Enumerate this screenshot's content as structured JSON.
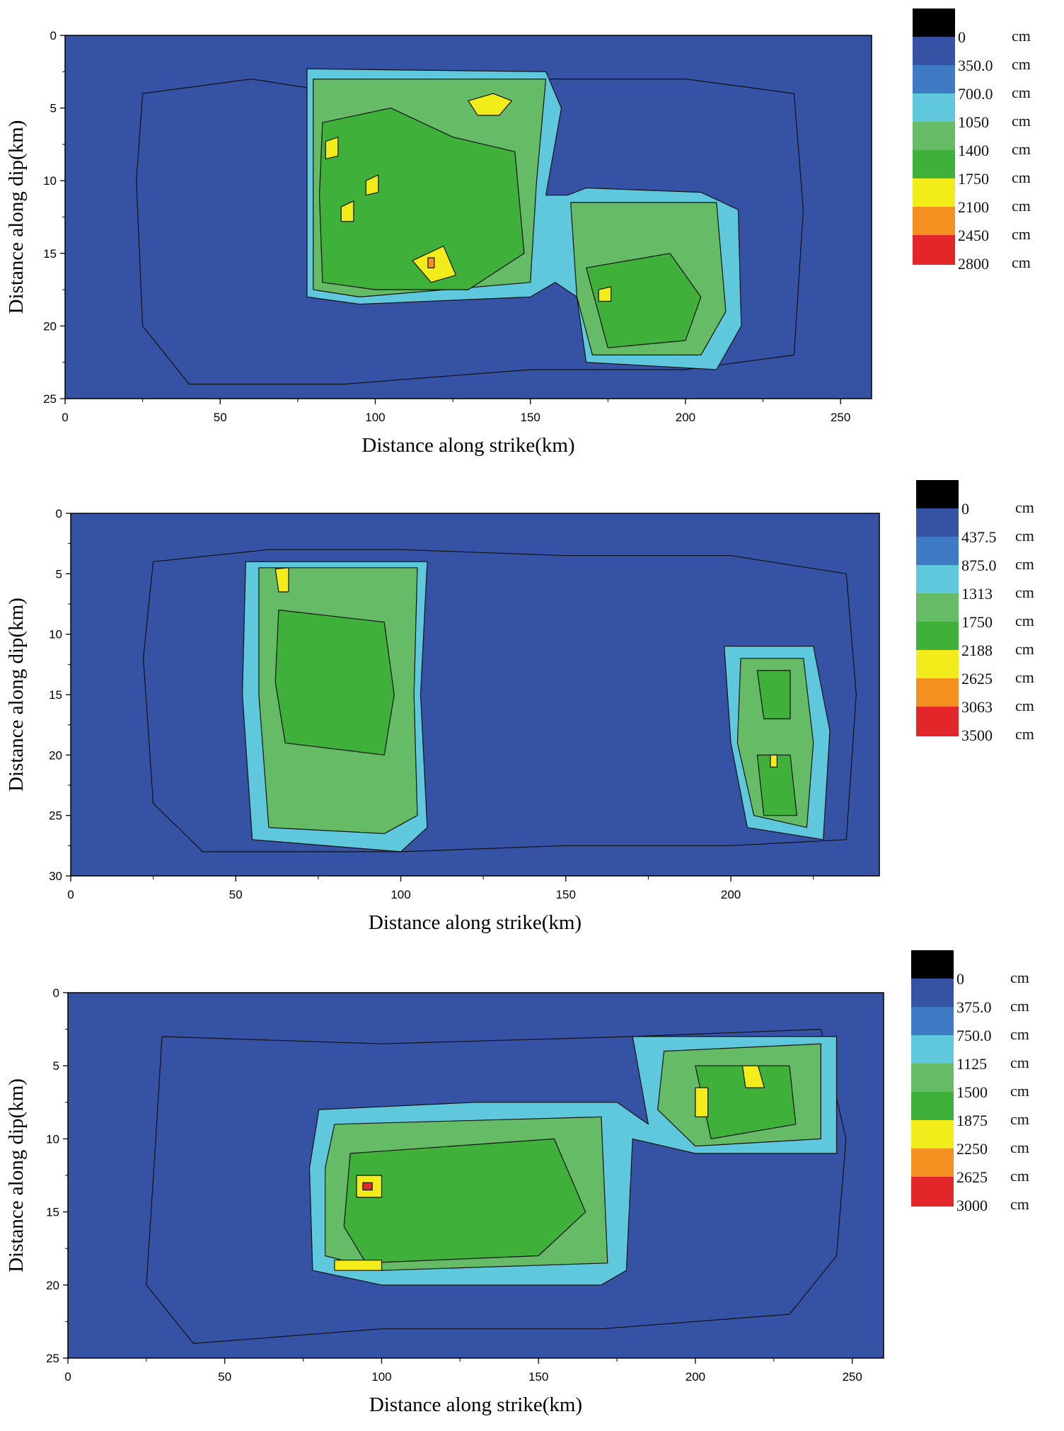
{
  "chart_data": [
    {
      "type": "heatmap",
      "xlabel": "Distance along strike(km)",
      "ylabel": "Distance along dip(km)",
      "xlim": [
        0,
        260
      ],
      "ylim": [
        25,
        0
      ],
      "x_ticks": [
        "0",
        "50",
        "100",
        "150",
        "200",
        "250"
      ],
      "y_ticks": [
        "0",
        "5",
        "10",
        "15",
        "20",
        "25"
      ],
      "legend": {
        "levels": [
          "0",
          "350.0",
          "700.0",
          "1050",
          "1400",
          "1750",
          "2100",
          "2450",
          "2800"
        ],
        "unit": "cm",
        "colors": [
          "#000000",
          "#3652a4",
          "#3f7bc4",
          "#5fc8dc",
          "#66bb66",
          "#3fb03a",
          "#f2ec1a",
          "#f39020",
          "#e3262a"
        ]
      },
      "patches": [
        {
          "level": 1,
          "points": [
            [
              25,
              4
            ],
            [
              60,
              3
            ],
            [
              90,
              4
            ],
            [
              150,
              3
            ],
            [
              200,
              3
            ],
            [
              235,
              4
            ],
            [
              238,
              12
            ],
            [
              235,
              22
            ],
            [
              200,
              23
            ],
            [
              150,
              23
            ],
            [
              90,
              24
            ],
            [
              40,
              24
            ],
            [
              25,
              20
            ],
            [
              23,
              10
            ]
          ]
        },
        {
          "level": 3,
          "points": [
            [
              78,
              2.3
            ],
            [
              155,
              2.5
            ],
            [
              160,
              5
            ],
            [
              155,
              11
            ],
            [
              162,
              11
            ],
            [
              168,
              10.5
            ],
            [
              205,
              10.8
            ],
            [
              217,
              12
            ],
            [
              218,
              20
            ],
            [
              210,
              23
            ],
            [
              168,
              22.5
            ],
            [
              165,
              18
            ],
            [
              158,
              17
            ],
            [
              150,
              18
            ],
            [
              95,
              18.5
            ],
            [
              78,
              18
            ]
          ]
        },
        {
          "level": 4,
          "points": [
            [
              80,
              3
            ],
            [
              155,
              3
            ],
            [
              152,
              10
            ],
            [
              150,
              17
            ],
            [
              95,
              18
            ],
            [
              80,
              17.5
            ]
          ]
        },
        {
          "level": 4,
          "points": [
            [
              163,
              11.5
            ],
            [
              210,
              11.5
            ],
            [
              213,
              19
            ],
            [
              205,
              22
            ],
            [
              170,
              22
            ],
            [
              165,
              18
            ]
          ]
        },
        {
          "level": 5,
          "points": [
            [
              83,
              6
            ],
            [
              105,
              5
            ],
            [
              125,
              7
            ],
            [
              145,
              8
            ],
            [
              148,
              15
            ],
            [
              130,
              17.5
            ],
            [
              100,
              17.5
            ],
            [
              83,
              17
            ],
            [
              82,
              11
            ]
          ]
        },
        {
          "level": 5,
          "points": [
            [
              168,
              16
            ],
            [
              195,
              15
            ],
            [
              205,
              18
            ],
            [
              200,
              21
            ],
            [
              175,
              21.5
            ]
          ]
        },
        {
          "level": 6,
          "points": [
            [
              112,
              15.5
            ],
            [
              122,
              14.5
            ],
            [
              126,
              16.5
            ],
            [
              118,
              17
            ]
          ]
        },
        {
          "level": 6,
          "points": [
            [
              130,
              4.5
            ],
            [
              138,
              4
            ],
            [
              144,
              4.5
            ],
            [
              140,
              5.5
            ],
            [
              133,
              5.5
            ]
          ]
        },
        {
          "level": 6,
          "points": [
            [
              84,
              7.3
            ],
            [
              88,
              7
            ],
            [
              88,
              8.3
            ],
            [
              84,
              8.5
            ]
          ]
        },
        {
          "level": 6,
          "points": [
            [
              97,
              10
            ],
            [
              101,
              9.6
            ],
            [
              101,
              10.8
            ],
            [
              97,
              11
            ]
          ]
        },
        {
          "level": 6,
          "points": [
            [
              89,
              11.8
            ],
            [
              93,
              11.4
            ],
            [
              93,
              12.8
            ],
            [
              89,
              12.8
            ]
          ]
        },
        {
          "level": 6,
          "points": [
            [
              172,
              17.5
            ],
            [
              176,
              17.3
            ],
            [
              176,
              18.3
            ],
            [
              172,
              18.3
            ]
          ]
        },
        {
          "level": 7,
          "points": [
            [
              117,
              15.3
            ],
            [
              119,
              15.3
            ],
            [
              119,
              16
            ],
            [
              117,
              16
            ]
          ]
        }
      ]
    },
    {
      "type": "heatmap",
      "xlabel": "Distance along strike(km)",
      "ylabel": "Distance along dip(km)",
      "xlim": [
        0,
        245
      ],
      "ylim": [
        30,
        0
      ],
      "x_ticks": [
        "0",
        "50",
        "100",
        "150",
        "200"
      ],
      "y_ticks": [
        "0",
        "5",
        "10",
        "15",
        "20",
        "25",
        "30"
      ],
      "legend": {
        "levels": [
          "0",
          "437.5",
          "875.0",
          "1313",
          "1750",
          "2188",
          "2625",
          "3063",
          "3500"
        ],
        "unit": "cm",
        "colors": [
          "#000000",
          "#3652a4",
          "#3f7bc4",
          "#5fc8dc",
          "#66bb66",
          "#3fb03a",
          "#f2ec1a",
          "#f39020",
          "#e3262a"
        ]
      },
      "patches": [
        {
          "level": 1,
          "points": [
            [
              25,
              4
            ],
            [
              60,
              3
            ],
            [
              100,
              3
            ],
            [
              150,
              3.5
            ],
            [
              200,
              3.5
            ],
            [
              235,
              5
            ],
            [
              238,
              15
            ],
            [
              235,
              27
            ],
            [
              200,
              27.5
            ],
            [
              150,
              27.5
            ],
            [
              100,
              28
            ],
            [
              40,
              28
            ],
            [
              25,
              24
            ],
            [
              22,
              12
            ]
          ]
        },
        {
          "level": 3,
          "points": [
            [
              53,
              4
            ],
            [
              108,
              4
            ],
            [
              106,
              15
            ],
            [
              108,
              26
            ],
            [
              100,
              28
            ],
            [
              55,
              27
            ],
            [
              52,
              15
            ]
          ]
        },
        {
          "level": 4,
          "points": [
            [
              57,
              4.5
            ],
            [
              105,
              4.5
            ],
            [
              104,
              15
            ],
            [
              105,
              25
            ],
            [
              95,
              26.5
            ],
            [
              60,
              26
            ],
            [
              57,
              15
            ]
          ]
        },
        {
          "level": 5,
          "points": [
            [
              63,
              8
            ],
            [
              95,
              9
            ],
            [
              98,
              15
            ],
            [
              95,
              20
            ],
            [
              65,
              19
            ],
            [
              62,
              14
            ]
          ]
        },
        {
          "level": 6,
          "points": [
            [
              62,
              4.6
            ],
            [
              66,
              4.5
            ],
            [
              66,
              6.5
            ],
            [
              63,
              6.5
            ]
          ]
        },
        {
          "level": 3,
          "points": [
            [
              198,
              11
            ],
            [
              225,
              11
            ],
            [
              230,
              18
            ],
            [
              228,
              27
            ],
            [
              205,
              26
            ],
            [
              200,
              19
            ]
          ]
        },
        {
          "level": 4,
          "points": [
            [
              203,
              12
            ],
            [
              222,
              12
            ],
            [
              225,
              19
            ],
            [
              223,
              26
            ],
            [
              207,
              25
            ],
            [
              202,
              19
            ]
          ]
        },
        {
          "level": 5,
          "points": [
            [
              208,
              13
            ],
            [
              218,
              13
            ],
            [
              218,
              17
            ],
            [
              210,
              17
            ]
          ]
        },
        {
          "level": 5,
          "points": [
            [
              208,
              20
            ],
            [
              218,
              20
            ],
            [
              220,
              25
            ],
            [
              210,
              25
            ]
          ]
        },
        {
          "level": 6,
          "points": [
            [
              212,
              20
            ],
            [
              214,
              20
            ],
            [
              214,
              21
            ],
            [
              212,
              21
            ]
          ]
        }
      ]
    },
    {
      "type": "heatmap",
      "xlabel": "Distance along strike(km)",
      "ylabel": "Distance along dip(km)",
      "xlim": [
        0,
        260
      ],
      "ylim": [
        25,
        0
      ],
      "x_ticks": [
        "0",
        "50",
        "100",
        "150",
        "200",
        "250"
      ],
      "y_ticks": [
        "0",
        "5",
        "10",
        "15",
        "20",
        "25"
      ],
      "legend": {
        "levels": [
          "0",
          "375.0",
          "750.0",
          "1125",
          "1500",
          "1875",
          "2250",
          "2625",
          "3000"
        ],
        "unit": "cm",
        "colors": [
          "#000000",
          "#3652a4",
          "#3f7bc4",
          "#5fc8dc",
          "#66bb66",
          "#3fb03a",
          "#f2ec1a",
          "#f39020",
          "#e3262a"
        ]
      },
      "patches": [
        {
          "level": 1,
          "points": [
            [
              30,
              3
            ],
            [
              100,
              3.5
            ],
            [
              180,
              3
            ],
            [
              240,
              2.5
            ],
            [
              248,
              10
            ],
            [
              245,
              18
            ],
            [
              230,
              22
            ],
            [
              170,
              23
            ],
            [
              100,
              23
            ],
            [
              40,
              24
            ],
            [
              25,
              20
            ],
            [
              28,
              10
            ]
          ]
        },
        {
          "level": 3,
          "points": [
            [
              80,
              8
            ],
            [
              130,
              7.5
            ],
            [
              175,
              7.5
            ],
            [
              185,
              9
            ],
            [
              180,
              3
            ],
            [
              245,
              3
            ],
            [
              245,
              11
            ],
            [
              200,
              11
            ],
            [
              180,
              10
            ],
            [
              178,
              19
            ],
            [
              170,
              20
            ],
            [
              100,
              20
            ],
            [
              78,
              19
            ],
            [
              77,
              12
            ]
          ]
        },
        {
          "level": 4,
          "points": [
            [
              85,
              9
            ],
            [
              170,
              8.5
            ],
            [
              172,
              18.5
            ],
            [
              100,
              19
            ],
            [
              82,
              18
            ],
            [
              82,
              12
            ]
          ]
        },
        {
          "level": 4,
          "points": [
            [
              190,
              4
            ],
            [
              240,
              3.5
            ],
            [
              240,
              10
            ],
            [
              200,
              10.5
            ],
            [
              188,
              8
            ]
          ]
        },
        {
          "level": 5,
          "points": [
            [
              90,
              11
            ],
            [
              155,
              10
            ],
            [
              165,
              15
            ],
            [
              150,
              18
            ],
            [
              95,
              18.5
            ],
            [
              88,
              16
            ]
          ]
        },
        {
          "level": 5,
          "points": [
            [
              200,
              5
            ],
            [
              230,
              5
            ],
            [
              232,
              9
            ],
            [
              205,
              10
            ]
          ]
        },
        {
          "level": 6,
          "points": [
            [
              92,
              12.5
            ],
            [
              100,
              12.5
            ],
            [
              100,
              14
            ],
            [
              92,
              14
            ]
          ]
        },
        {
          "level": 6,
          "points": [
            [
              85,
              18.3
            ],
            [
              100,
              18.3
            ],
            [
              100,
              19
            ],
            [
              85,
              19
            ]
          ]
        },
        {
          "level": 6,
          "points": [
            [
              215,
              5
            ],
            [
              220,
              5
            ],
            [
              222,
              6.5
            ],
            [
              216,
              6.5
            ]
          ]
        },
        {
          "level": 6,
          "points": [
            [
              200,
              6.5
            ],
            [
              204,
              6.5
            ],
            [
              204,
              8.5
            ],
            [
              200,
              8.5
            ]
          ]
        },
        {
          "level": 8,
          "points": [
            [
              94,
              13
            ],
            [
              97,
              13
            ],
            [
              97,
              13.5
            ],
            [
              94,
              13.5
            ]
          ]
        }
      ]
    }
  ]
}
